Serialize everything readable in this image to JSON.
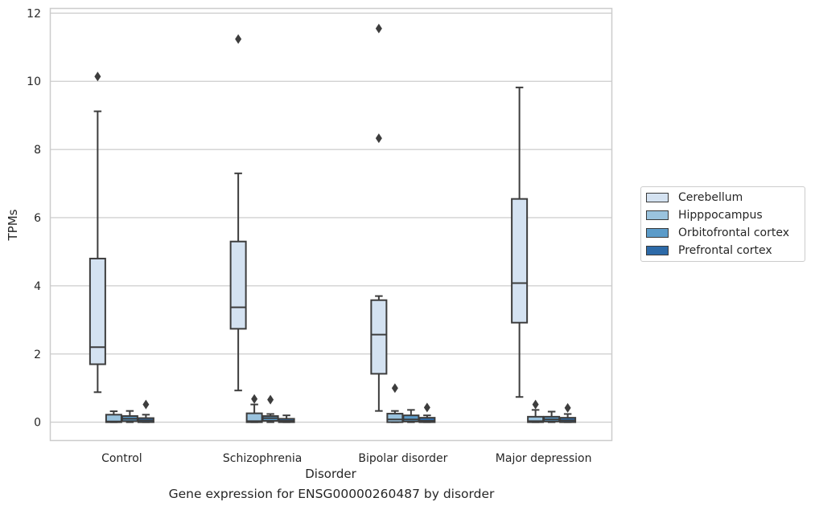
{
  "chart_data": {
    "type": "box",
    "caption": "Gene expression for ENSG00000260487 by disorder",
    "xlabel": "Disorder",
    "ylabel": "TPMs",
    "ylim": [
      -0.55,
      12.15
    ],
    "yticks": [
      0,
      2,
      4,
      6,
      8,
      10,
      12
    ],
    "grid": "horizontal",
    "legend_position": "right",
    "categories": [
      "Control",
      "Schizophrenia",
      "Bipolar disorder",
      "Major depression"
    ],
    "series": [
      {
        "name": "Cerebellum",
        "color": "#d4e2f1",
        "boxes": [
          {
            "q1": 1.7,
            "median": 2.2,
            "q3": 4.8,
            "whisker_low": 0.88,
            "whisker_high": 9.12,
            "outliers": [
              10.14
            ]
          },
          {
            "q1": 2.74,
            "median": 3.37,
            "q3": 5.3,
            "whisker_low": 0.93,
            "whisker_high": 7.3,
            "outliers": [
              11.24
            ]
          },
          {
            "q1": 1.42,
            "median": 2.57,
            "q3": 3.58,
            "whisker_low": 0.33,
            "whisker_high": 3.7,
            "outliers": [
              8.33,
              11.55
            ]
          },
          {
            "q1": 2.92,
            "median": 4.08,
            "q3": 6.55,
            "whisker_low": 0.74,
            "whisker_high": 9.82,
            "outliers": []
          }
        ]
      },
      {
        "name": "Hipppocampus",
        "color": "#9ac3de",
        "boxes": [
          {
            "q1": 0.0,
            "median": 0.02,
            "q3": 0.22,
            "whisker_low": 0.0,
            "whisker_high": 0.32,
            "outliers": []
          },
          {
            "q1": 0.0,
            "median": 0.03,
            "q3": 0.26,
            "whisker_low": 0.0,
            "whisker_high": 0.52,
            "outliers": [
              0.68
            ]
          },
          {
            "q1": 0.0,
            "median": 0.08,
            "q3": 0.25,
            "whisker_low": 0.0,
            "whisker_high": 0.33,
            "outliers": [
              1.0
            ]
          },
          {
            "q1": 0.0,
            "median": 0.03,
            "q3": 0.16,
            "whisker_low": 0.0,
            "whisker_high": 0.36,
            "outliers": [
              0.52
            ]
          }
        ]
      },
      {
        "name": "Orbitofrontal cortex",
        "color": "#5b9bc9",
        "boxes": [
          {
            "q1": 0.03,
            "median": 0.1,
            "q3": 0.18,
            "whisker_low": 0.0,
            "whisker_high": 0.33,
            "outliers": []
          },
          {
            "q1": 0.04,
            "median": 0.12,
            "q3": 0.18,
            "whisker_low": 0.0,
            "whisker_high": 0.24,
            "outliers": [
              0.66
            ]
          },
          {
            "q1": 0.02,
            "median": 0.08,
            "q3": 0.2,
            "whisker_low": 0.0,
            "whisker_high": 0.36,
            "outliers": []
          },
          {
            "q1": 0.02,
            "median": 0.08,
            "q3": 0.16,
            "whisker_low": 0.0,
            "whisker_high": 0.31,
            "outliers": []
          }
        ]
      },
      {
        "name": "Prefrontal cortex",
        "color": "#2d6aa8",
        "boxes": [
          {
            "q1": 0.0,
            "median": 0.05,
            "q3": 0.12,
            "whisker_low": 0.0,
            "whisker_high": 0.22,
            "outliers": [
              0.52
            ]
          },
          {
            "q1": 0.0,
            "median": 0.04,
            "q3": 0.1,
            "whisker_low": 0.0,
            "whisker_high": 0.2,
            "outliers": []
          },
          {
            "q1": 0.0,
            "median": 0.04,
            "q3": 0.13,
            "whisker_low": 0.0,
            "whisker_high": 0.2,
            "outliers": [
              0.43
            ]
          },
          {
            "q1": 0.0,
            "median": 0.05,
            "q3": 0.13,
            "whisker_low": 0.0,
            "whisker_high": 0.24,
            "outliers": [
              0.42
            ]
          }
        ]
      }
    ]
  }
}
